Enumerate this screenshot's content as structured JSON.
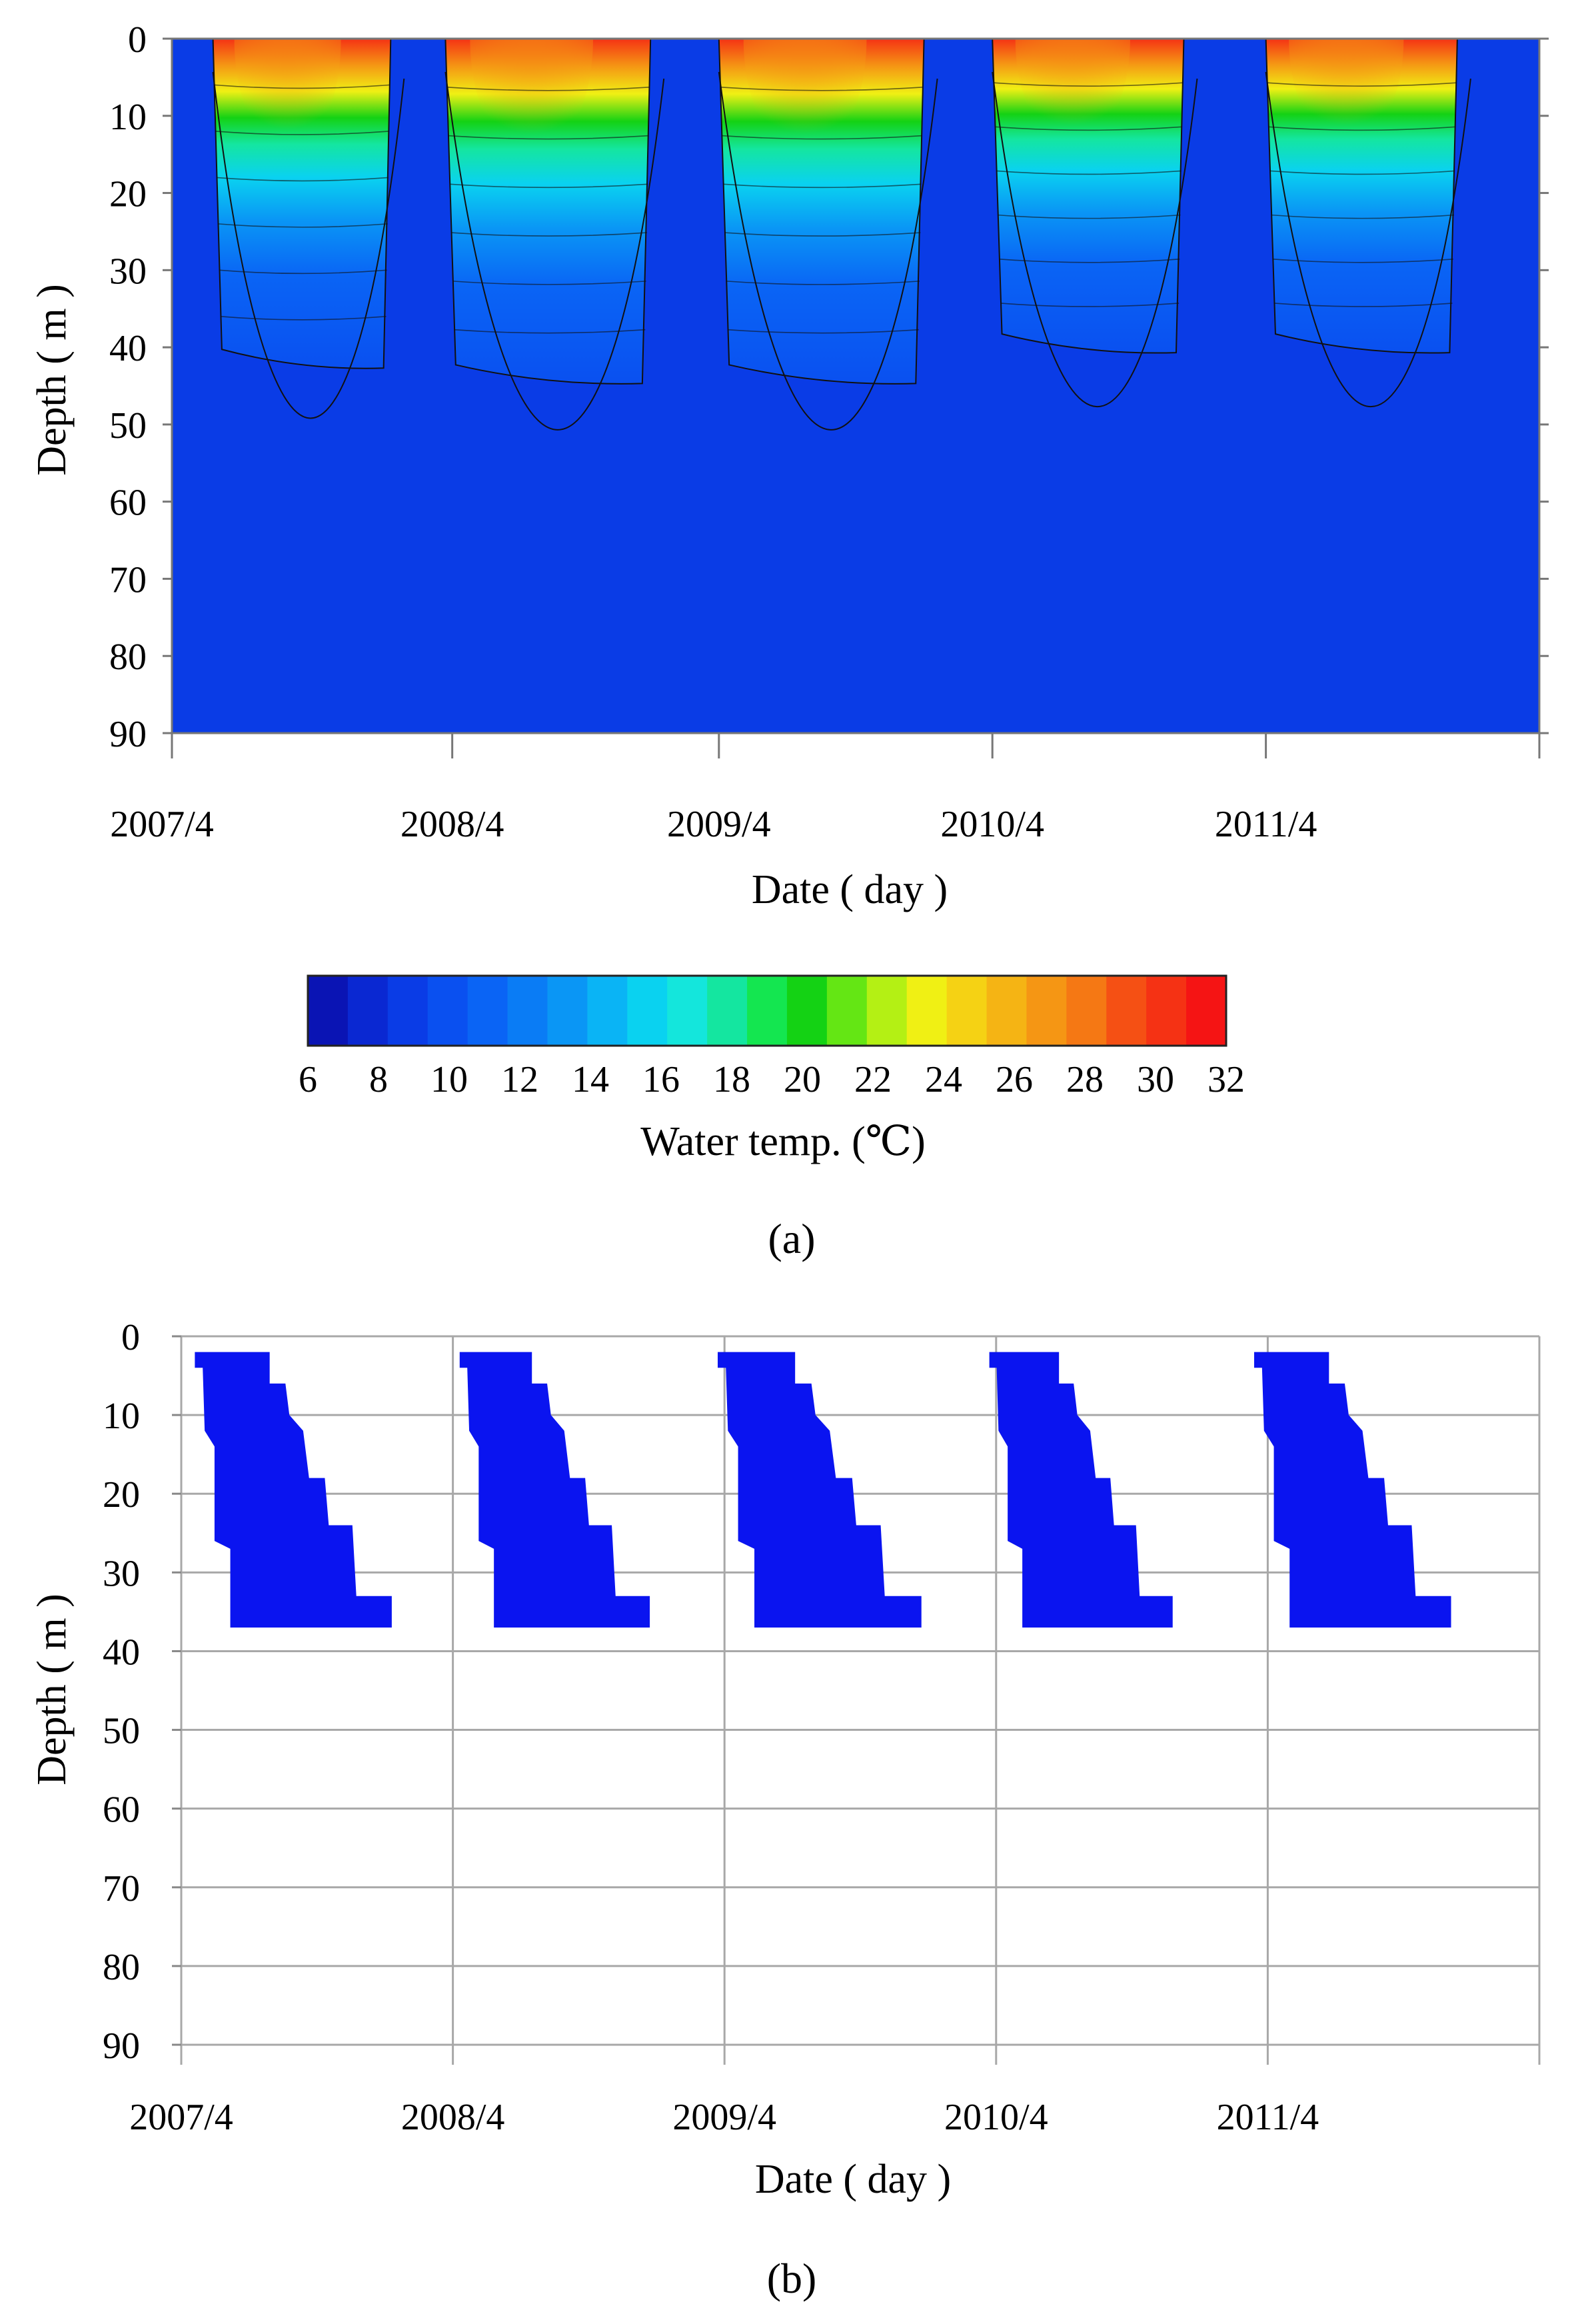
{
  "chart_data": [
    {
      "panel_label": "(a)",
      "type": "heatmap",
      "xlabel": "Date ( day )",
      "ylabel": "Depth ( m )",
      "x_tick_labels": [
        "2007/4",
        "2008/4",
        "2009/4",
        "2010/4",
        "2011/4"
      ],
      "y_tick_labels": [
        "0",
        "10",
        "20",
        "30",
        "40",
        "50",
        "60",
        "70",
        "80",
        "90"
      ],
      "ylim": [
        0,
        90
      ],
      "y_inverted": true,
      "colorbar": {
        "label": "Water temp. (℃)",
        "min": 6,
        "max": 32,
        "tick_labels": [
          "6",
          "8",
          "10",
          "12",
          "14",
          "16",
          "18",
          "20",
          "22",
          "24",
          "26",
          "28",
          "30",
          "32"
        ],
        "colors": [
          "#0a14b4",
          "#0a28d2",
          "#0a3ce6",
          "#0a50f0",
          "#0a64f5",
          "#0a7cf5",
          "#0a96f5",
          "#0ab4f5",
          "#0ad2f0",
          "#14e6dc",
          "#14e6a0",
          "#14e650",
          "#14d214",
          "#64e614",
          "#b4f014",
          "#f0f014",
          "#f5d214",
          "#f5b414",
          "#f59614",
          "#f57814",
          "#f55014",
          "#f53214",
          "#f51414"
        ]
      },
      "series": [
        {
          "season": "2007",
          "start_frac": 0.03,
          "end_frac": 0.16,
          "surface_max_c": 30,
          "thermocline_depth_m": 42
        },
        {
          "season": "2008",
          "start_frac": 0.2,
          "end_frac": 0.35,
          "surface_max_c": 31,
          "thermocline_depth_m": 44
        },
        {
          "season": "2009",
          "start_frac": 0.4,
          "end_frac": 0.55,
          "surface_max_c": 30,
          "thermocline_depth_m": 44
        },
        {
          "season": "2010",
          "start_frac": 0.6,
          "end_frac": 0.74,
          "surface_max_c": 31,
          "thermocline_depth_m": 40
        },
        {
          "season": "2011",
          "start_frac": 0.8,
          "end_frac": 0.94,
          "surface_max_c": 31,
          "thermocline_depth_m": 40
        }
      ]
    },
    {
      "panel_label": "(b)",
      "type": "area",
      "xlabel": "Date ( day )",
      "ylabel": "Depth ( m )",
      "x_tick_labels": [
        "2007/4",
        "2008/4",
        "2009/4",
        "2010/4",
        "2011/4"
      ],
      "y_tick_labels": [
        "0",
        "10",
        "20",
        "30",
        "40",
        "50",
        "60",
        "70",
        "80",
        "90"
      ],
      "ylim": [
        0,
        90
      ],
      "y_inverted": true,
      "grid": true,
      "fill_color": "#0a14f0",
      "series": [
        {
          "season": "2007",
          "start_frac": 0.01,
          "end_frac": 0.155,
          "top_depth_m": 2,
          "bottom_depth_m": 37
        },
        {
          "season": "2008",
          "start_frac": 0.205,
          "end_frac": 0.345,
          "top_depth_m": 2,
          "bottom_depth_m": 37
        },
        {
          "season": "2009",
          "start_frac": 0.395,
          "end_frac": 0.545,
          "top_depth_m": 2,
          "bottom_depth_m": 37
        },
        {
          "season": "2010",
          "start_frac": 0.595,
          "end_frac": 0.73,
          "top_depth_m": 2,
          "bottom_depth_m": 37
        },
        {
          "season": "2011",
          "start_frac": 0.79,
          "end_frac": 0.935,
          "top_depth_m": 2,
          "bottom_depth_m": 37
        }
      ]
    }
  ]
}
